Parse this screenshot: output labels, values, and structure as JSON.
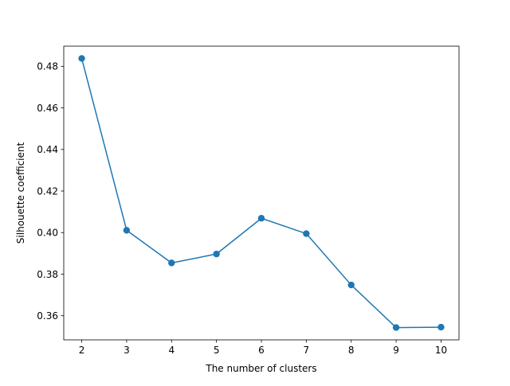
{
  "chart_data": {
    "type": "line",
    "title": "",
    "xlabel": "The number of clusters",
    "ylabel": "Silhouette coefficient",
    "x": [
      2,
      3,
      4,
      5,
      6,
      7,
      8,
      9,
      10
    ],
    "series": [
      {
        "values": [
          0.4838,
          0.4011,
          0.3854,
          0.3897,
          0.4069,
          0.3995,
          0.3748,
          0.3543,
          0.3545
        ],
        "color": "#1f77b4",
        "marker": "circle"
      }
    ],
    "xlim": [
      1.6,
      10.4
    ],
    "ylim": [
      0.3484,
      0.4897
    ],
    "xticks": [
      2,
      3,
      4,
      5,
      6,
      7,
      8,
      9,
      10
    ],
    "xtick_labels": [
      "2",
      "3",
      "4",
      "5",
      "6",
      "7",
      "8",
      "9",
      "10"
    ],
    "yticks": [
      0.36,
      0.38,
      0.4,
      0.42,
      0.44,
      0.46,
      0.48
    ],
    "ytick_labels": [
      "0.36",
      "0.38",
      "0.40",
      "0.42",
      "0.44",
      "0.46",
      "0.48"
    ],
    "grid": false,
    "legend": "none"
  }
}
